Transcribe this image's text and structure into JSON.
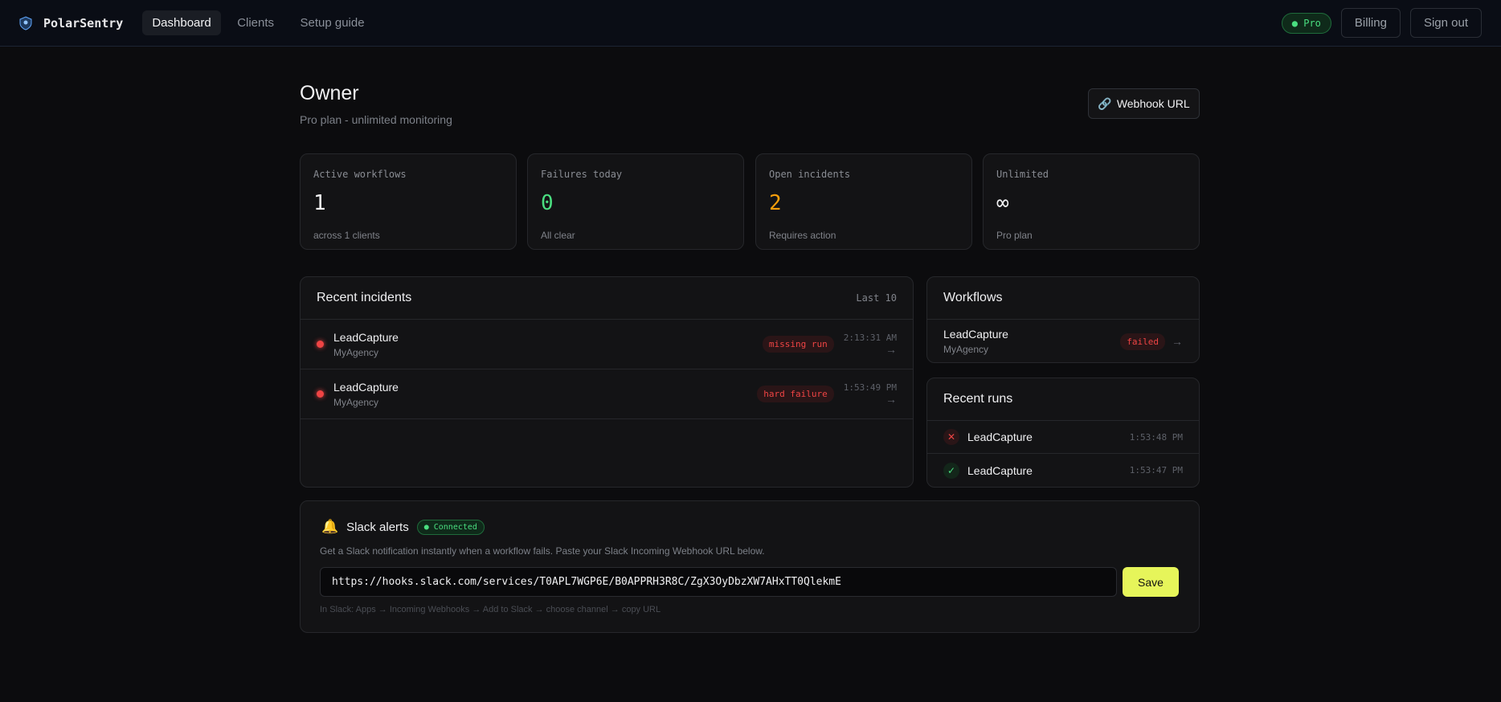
{
  "header": {
    "brand": "PolarSentry",
    "nav": [
      {
        "label": "Dashboard",
        "active": true
      },
      {
        "label": "Clients"
      },
      {
        "label": "Setup guide"
      }
    ],
    "plan_badge": "Pro",
    "billing": "Billing",
    "sign_out": "Sign out"
  },
  "page": {
    "title": "Owner",
    "subtitle": "Pro plan - unlimited monitoring",
    "webhook_button": "Webhook URL"
  },
  "stats": [
    {
      "label": "Active workflows",
      "value": "1",
      "note": "across 1 clients",
      "color": "#f2f2f4"
    },
    {
      "label": "Failures today",
      "value": "0",
      "note": "All clear",
      "color": "#4ade80"
    },
    {
      "label": "Open incidents",
      "value": "2",
      "note": "Requires action",
      "color": "#f59e0b"
    },
    {
      "label": "Unlimited",
      "value": "∞",
      "note": "Pro plan",
      "color": "#f2f2f4"
    }
  ],
  "incidents": {
    "title": "Recent incidents",
    "meta": "Last 10",
    "items": [
      {
        "name": "LeadCapture",
        "org": "MyAgency",
        "badge": "missing run",
        "time": "2:13:31 AM",
        "arrow": "→"
      },
      {
        "name": "LeadCapture",
        "org": "MyAgency",
        "badge": "hard failure",
        "time": "1:53:49 PM",
        "arrow": "→"
      }
    ]
  },
  "workflows": {
    "title": "Workflows",
    "items": [
      {
        "name": "LeadCapture",
        "org": "MyAgency",
        "status": "failed",
        "arrow": "→"
      }
    ]
  },
  "runs": {
    "title": "Recent runs",
    "items": [
      {
        "status": "failed",
        "icon": "✕",
        "name": "LeadCapture",
        "time": "1:53:48 PM"
      },
      {
        "status": "success",
        "icon": "✓",
        "name": "LeadCapture",
        "time": "1:53:47 PM"
      }
    ]
  },
  "slack": {
    "title": "Slack alerts",
    "status": "Connected",
    "description": "Get a Slack notification instantly when a workflow fails. Paste your Slack Incoming Webhook URL below.",
    "url": "https://hooks.slack.com/services/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",
    "save": "Save",
    "hint": "In Slack: Apps → Incoming Webhooks → Add to Slack → choose channel → copy URL"
  }
}
